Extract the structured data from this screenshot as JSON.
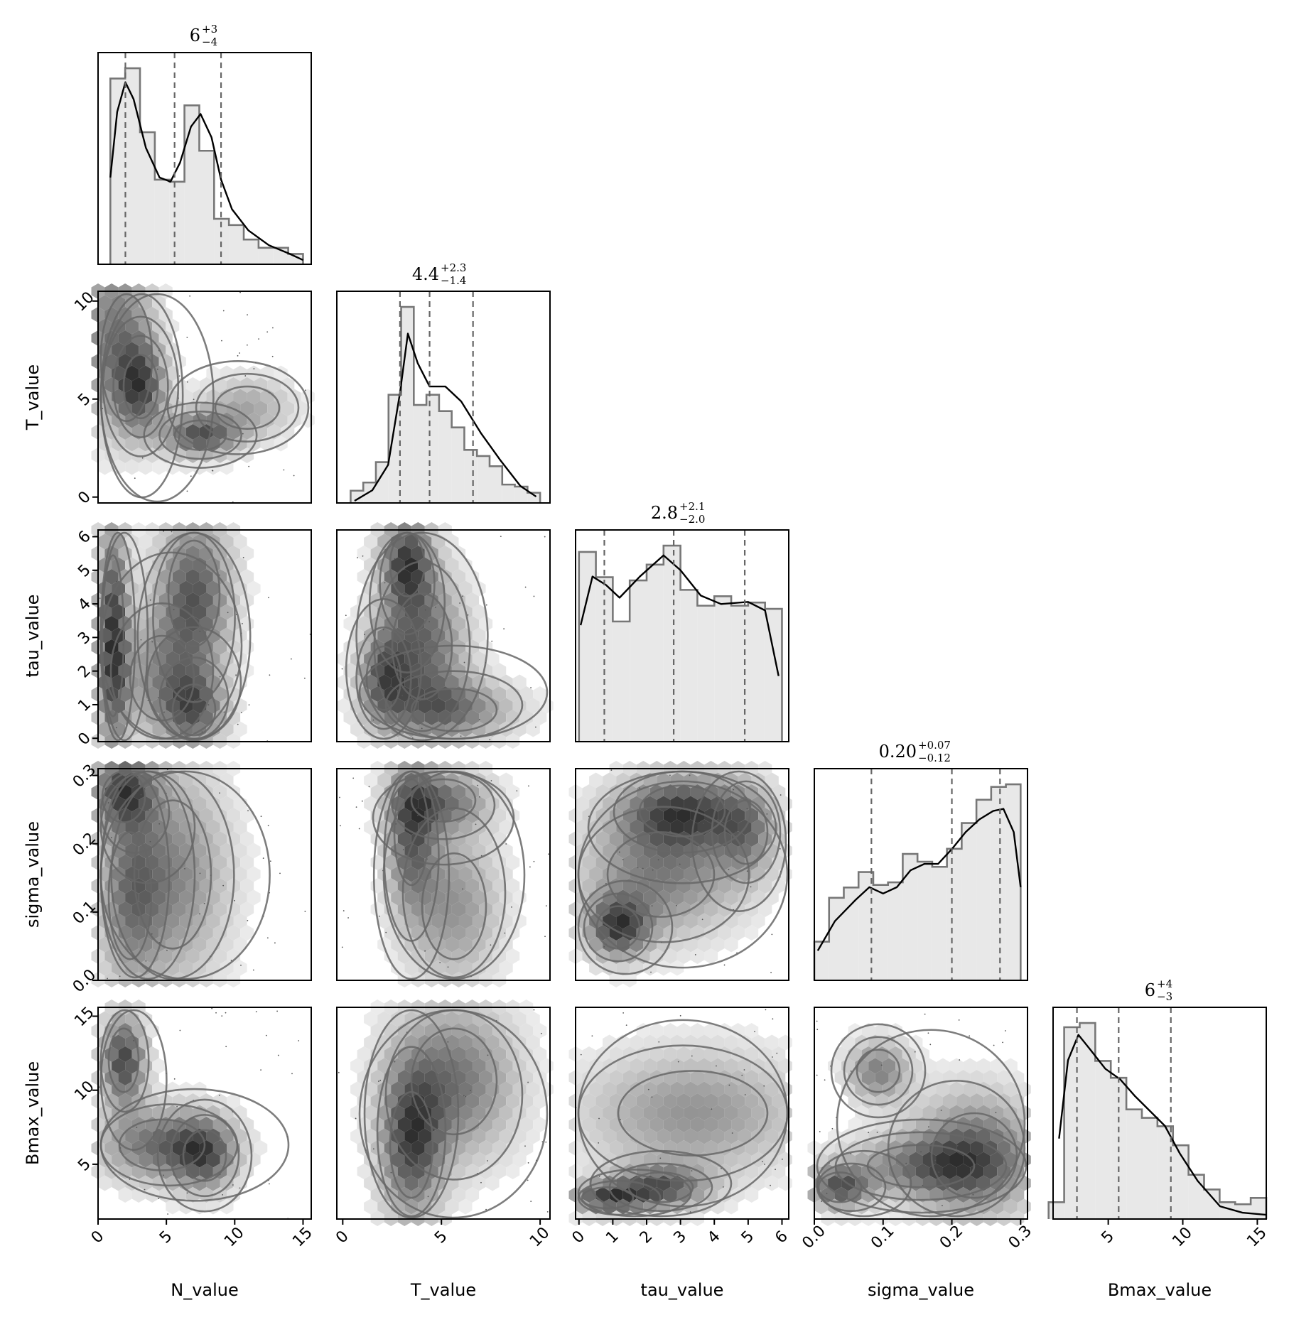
{
  "chart_data": {
    "type": "corner",
    "parameters": [
      "N_value",
      "T_value",
      "tau_value",
      "sigma_value",
      "Bmax_value"
    ],
    "ranges": [
      [
        0,
        15.6
      ],
      [
        -0.3,
        10.5
      ],
      [
        -0.1,
        6.2
      ],
      [
        0.0,
        0.31
      ],
      [
        1.3,
        15.6
      ]
    ],
    "ticks": [
      [
        "0",
        "5",
        "10",
        "15"
      ],
      [
        "0",
        "5",
        "10"
      ],
      [
        "0",
        "1",
        "2",
        "3",
        "4",
        "5",
        "6"
      ],
      [
        "0.0",
        "0.1",
        "0.2",
        "0.3"
      ],
      [
        "5",
        "10",
        "15"
      ]
    ],
    "tick_values": [
      [
        0,
        5,
        10,
        15
      ],
      [
        0,
        5,
        10
      ],
      [
        0,
        1,
        2,
        3,
        4,
        5,
        6
      ],
      [
        0.0,
        0.1,
        0.2,
        0.3
      ],
      [
        5,
        10,
        15
      ]
    ],
    "summaries": [
      {
        "central": "6",
        "plus": "+3",
        "minus": "−4"
      },
      {
        "central": "4.4",
        "plus": "+2.3",
        "minus": "−1.4"
      },
      {
        "central": "2.8",
        "plus": "+2.1",
        "minus": "−2.0"
      },
      {
        "central": "0.20",
        "plus": "+0.07",
        "minus": "−0.12"
      },
      {
        "central": "6",
        "plus": "+4",
        "minus": "−3"
      }
    ],
    "quantiles": [
      [
        2.0,
        5.6,
        9.0
      ],
      [
        2.9,
        4.4,
        6.6
      ],
      [
        0.75,
        2.8,
        4.9
      ],
      [
        0.083,
        0.2,
        0.27
      ],
      [
        2.9,
        5.7,
        9.2
      ]
    ],
    "hist_edges": [
      [
        0.9,
        15.0
      ],
      [
        0.4,
        10.0
      ],
      [
        0.0,
        6.0
      ],
      [
        0.0,
        0.3
      ],
      [
        1.0,
        15.6
      ]
    ],
    "hist_counts": [
      [
        90,
        95,
        64,
        41,
        40,
        77,
        55,
        22,
        19,
        12,
        8,
        8,
        5
      ],
      [
        6,
        10,
        20,
        53,
        96,
        48,
        53,
        45,
        37,
        26,
        23,
        18,
        9,
        8,
        5
      ],
      [
        60,
        52,
        38,
        51,
        56,
        62,
        48,
        43,
        46,
        43,
        44,
        42
      ],
      [
        15,
        32,
        36,
        42,
        37,
        38,
        49,
        46,
        44,
        51,
        61,
        70,
        75,
        76
      ],
      [
        8,
        91,
        93,
        75,
        67,
        52,
        48,
        44,
        35,
        21,
        14,
        8,
        7,
        10
      ]
    ],
    "kde": [
      [
        [
          0.9,
          0.41
        ],
        [
          1.4,
          0.72
        ],
        [
          2.0,
          0.86
        ],
        [
          2.6,
          0.78
        ],
        [
          3.5,
          0.55
        ],
        [
          4.5,
          0.41
        ],
        [
          5.3,
          0.39
        ],
        [
          6.0,
          0.48
        ],
        [
          6.8,
          0.65
        ],
        [
          7.5,
          0.71
        ],
        [
          8.3,
          0.6
        ],
        [
          9.0,
          0.4
        ],
        [
          9.8,
          0.26
        ],
        [
          11,
          0.16
        ],
        [
          12.5,
          0.09
        ],
        [
          14,
          0.05
        ],
        [
          15,
          0.02
        ]
      ],
      [
        [
          0.6,
          0.01
        ],
        [
          1.5,
          0.06
        ],
        [
          2.3,
          0.18
        ],
        [
          2.9,
          0.52
        ],
        [
          3.3,
          0.8
        ],
        [
          3.8,
          0.66
        ],
        [
          4.4,
          0.55
        ],
        [
          5.2,
          0.55
        ],
        [
          6.0,
          0.48
        ],
        [
          7.0,
          0.33
        ],
        [
          8.0,
          0.2
        ],
        [
          9.0,
          0.08
        ],
        [
          9.8,
          0.03
        ]
      ],
      [
        [
          0.05,
          0.55
        ],
        [
          0.4,
          0.78
        ],
        [
          0.8,
          0.74
        ],
        [
          1.2,
          0.68
        ],
        [
          1.8,
          0.78
        ],
        [
          2.5,
          0.88
        ],
        [
          3.0,
          0.81
        ],
        [
          3.6,
          0.69
        ],
        [
          4.2,
          0.65
        ],
        [
          5.0,
          0.66
        ],
        [
          5.5,
          0.62
        ],
        [
          5.9,
          0.31
        ]
      ],
      [
        [
          0.005,
          0.14
        ],
        [
          0.03,
          0.28
        ],
        [
          0.06,
          0.38
        ],
        [
          0.08,
          0.44
        ],
        [
          0.1,
          0.41
        ],
        [
          0.12,
          0.44
        ],
        [
          0.14,
          0.52
        ],
        [
          0.16,
          0.55
        ],
        [
          0.18,
          0.55
        ],
        [
          0.2,
          0.62
        ],
        [
          0.22,
          0.7
        ],
        [
          0.24,
          0.76
        ],
        [
          0.26,
          0.8
        ],
        [
          0.275,
          0.81
        ],
        [
          0.29,
          0.7
        ],
        [
          0.3,
          0.44
        ]
      ],
      [
        [
          1.7,
          0.38
        ],
        [
          2.3,
          0.75
        ],
        [
          3.0,
          0.87
        ],
        [
          3.8,
          0.8
        ],
        [
          4.8,
          0.71
        ],
        [
          5.8,
          0.66
        ],
        [
          6.8,
          0.58
        ],
        [
          7.8,
          0.51
        ],
        [
          8.8,
          0.44
        ],
        [
          9.8,
          0.31
        ],
        [
          11,
          0.18
        ],
        [
          12.5,
          0.06
        ],
        [
          14,
          0.03
        ],
        [
          15.6,
          0.02
        ]
      ]
    ]
  }
}
